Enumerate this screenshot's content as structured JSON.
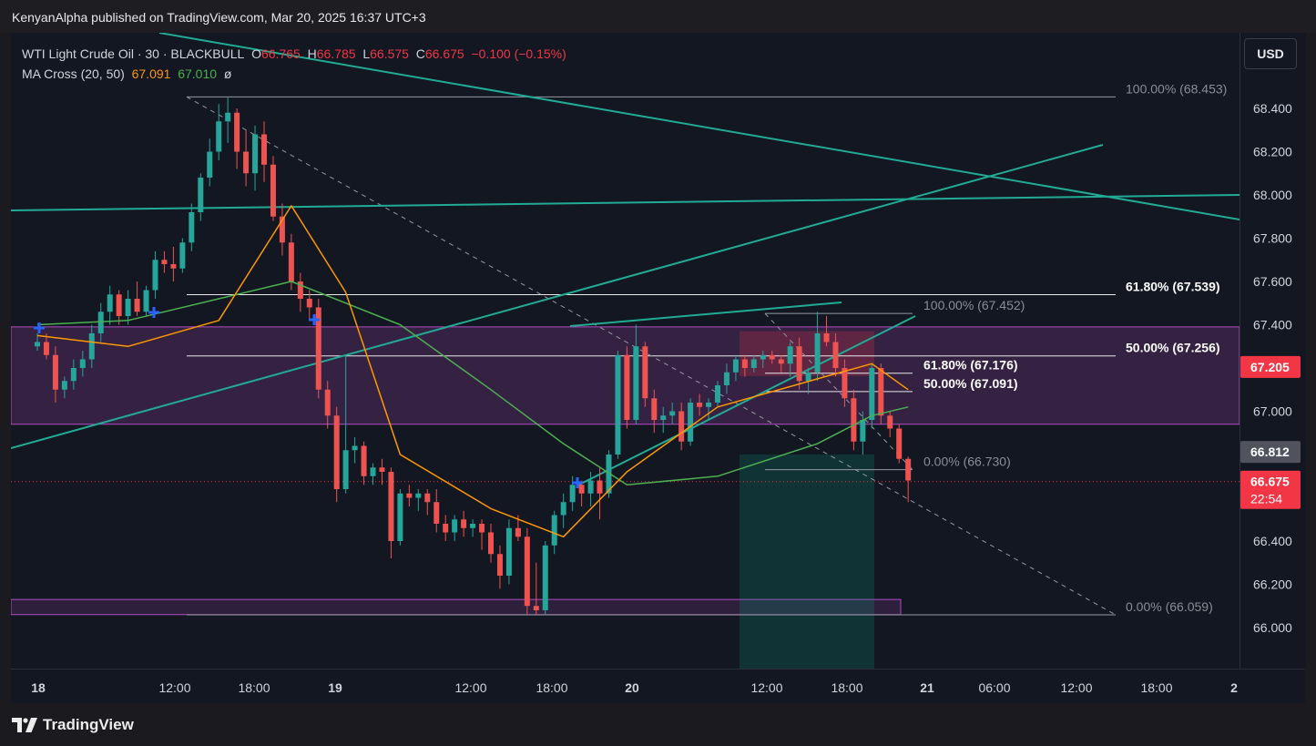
{
  "header": {
    "published_line": "KenyanAlpha published on TradingView.com, Mar 20, 2025 16:37 UTC+3"
  },
  "legend": {
    "symbol": "WTI Light Crude Oil · 30 · BLACKBULL",
    "o_label": "O",
    "o_value": "66.765",
    "h_label": "H",
    "h_value": "66.785",
    "l_label": "L",
    "l_value": "66.575",
    "c_label": "C",
    "c_value": "66.675",
    "change": "−0.100 (−0.15%)",
    "ma_name": "MA Cross (20, 50)",
    "ma_fast": "67.091",
    "ma_slow": "67.010",
    "ma_symbol": "ø"
  },
  "currency_button": "USD",
  "brand": "TradingView",
  "colors": {
    "up": "#26a69a",
    "down": "#ef5350",
    "ma_fast": "#ff9800",
    "ma_slow": "#4caf50",
    "trendline": "#22ab94",
    "zone": "#7e3b8a",
    "cross_marker": "#2962ff"
  },
  "chart_data": {
    "type": "candlestick",
    "y_axis": {
      "ticks": [
        "68.400",
        "68.200",
        "68.000",
        "67.800",
        "67.600",
        "67.400",
        "67.200",
        "67.000",
        "66.800",
        "66.600",
        "66.400",
        "66.200",
        "66.000"
      ],
      "range": [
        65.82,
        68.8
      ]
    },
    "x_axis": {
      "ticks": [
        "18",
        "12:00",
        "18:00",
        "19",
        "12:00",
        "18:00",
        "20",
        "12:00",
        "18:00",
        "21",
        "06:00",
        "12:00",
        "18:00",
        "2"
      ]
    },
    "price_labels": {
      "current_price": "67.205",
      "prev_close": "66.812",
      "last_price": "66.675",
      "countdown": "22:54"
    },
    "fib_levels": [
      {
        "label": "100.00% (68.453)",
        "price": 68.453
      },
      {
        "label": "61.80% (67.539)",
        "price": 67.539
      },
      {
        "label": "50.00% (67.256)",
        "price": 67.256
      },
      {
        "label": "0.00% (66.059)",
        "price": 66.059
      },
      {
        "label": "100.00% (67.452)",
        "price": 67.452
      },
      {
        "label": "61.80% (67.176)",
        "price": 67.176
      },
      {
        "label": "50.00% (67.091)",
        "price": 67.091
      },
      {
        "label": "0.00% (66.730)",
        "price": 66.73
      }
    ],
    "zones": [
      {
        "top": 67.39,
        "bottom": 66.94
      },
      {
        "top": 66.13,
        "bottom": 66.06
      }
    ],
    "position": {
      "entry": 67.205,
      "stop": 67.37,
      "target": 65.82,
      "entry_line": 66.8
    },
    "candles": [
      [
        67.3,
        67.36,
        67.28,
        67.32
      ],
      [
        67.32,
        67.36,
        67.24,
        67.26
      ],
      [
        67.26,
        67.3,
        67.04,
        67.1
      ],
      [
        67.1,
        67.16,
        67.06,
        67.14
      ],
      [
        67.14,
        67.24,
        67.1,
        67.2
      ],
      [
        67.2,
        67.28,
        67.16,
        67.24
      ],
      [
        67.24,
        67.4,
        67.2,
        67.36
      ],
      [
        67.36,
        67.5,
        67.32,
        67.46
      ],
      [
        67.46,
        67.58,
        67.4,
        67.54
      ],
      [
        67.54,
        67.56,
        67.4,
        67.44
      ],
      [
        67.44,
        67.56,
        67.4,
        67.52
      ],
      [
        67.52,
        67.6,
        67.44,
        67.46
      ],
      [
        67.46,
        67.58,
        67.44,
        67.56
      ],
      [
        67.56,
        67.74,
        67.52,
        67.7
      ],
      [
        67.7,
        67.74,
        67.64,
        67.68
      ],
      [
        67.68,
        67.76,
        67.6,
        67.66
      ],
      [
        67.66,
        67.8,
        67.64,
        67.78
      ],
      [
        67.78,
        67.96,
        67.74,
        67.92
      ],
      [
        67.92,
        68.1,
        67.88,
        68.08
      ],
      [
        68.08,
        68.26,
        68.04,
        68.2
      ],
      [
        68.2,
        68.42,
        68.16,
        68.34
      ],
      [
        68.34,
        68.45,
        68.24,
        68.38
      ],
      [
        68.38,
        68.4,
        68.12,
        68.2
      ],
      [
        68.2,
        68.3,
        68.04,
        68.1
      ],
      [
        68.1,
        68.32,
        68.02,
        68.28
      ],
      [
        68.28,
        68.34,
        68.06,
        68.14
      ],
      [
        68.14,
        68.18,
        67.88,
        67.9
      ],
      [
        67.9,
        67.96,
        67.72,
        67.78
      ],
      [
        67.78,
        67.82,
        67.56,
        67.6
      ],
      [
        67.6,
        67.64,
        67.46,
        67.52
      ],
      [
        67.52,
        67.56,
        67.42,
        67.48
      ],
      [
        67.48,
        67.52,
        67.06,
        67.1
      ],
      [
        67.1,
        67.14,
        66.92,
        66.98
      ],
      [
        66.98,
        67.02,
        66.58,
        66.64
      ],
      [
        66.64,
        67.26,
        66.62,
        66.82
      ],
      [
        66.82,
        66.88,
        66.76,
        66.84
      ],
      [
        66.84,
        66.86,
        66.66,
        66.7
      ],
      [
        66.7,
        66.76,
        66.66,
        66.74
      ],
      [
        66.74,
        66.78,
        66.66,
        66.72
      ],
      [
        66.72,
        66.74,
        66.32,
        66.4
      ],
      [
        66.4,
        66.64,
        66.38,
        66.62
      ],
      [
        66.62,
        66.66,
        66.56,
        66.6
      ],
      [
        66.6,
        66.64,
        66.54,
        66.62
      ],
      [
        66.62,
        66.64,
        66.52,
        66.58
      ],
      [
        66.58,
        66.64,
        66.44,
        66.48
      ],
      [
        66.48,
        66.52,
        66.4,
        66.44
      ],
      [
        66.44,
        66.52,
        66.4,
        66.5
      ],
      [
        66.5,
        66.54,
        66.42,
        66.46
      ],
      [
        66.46,
        66.5,
        66.42,
        66.48
      ],
      [
        66.48,
        66.5,
        66.36,
        66.44
      ],
      [
        66.44,
        66.48,
        66.3,
        66.34
      ],
      [
        66.34,
        66.38,
        66.18,
        66.24
      ],
      [
        66.24,
        66.5,
        66.2,
        66.46
      ],
      [
        66.46,
        66.52,
        66.4,
        66.42
      ],
      [
        66.42,
        66.46,
        66.06,
        66.1
      ],
      [
        66.1,
        66.3,
        66.06,
        66.08
      ],
      [
        66.08,
        66.4,
        66.06,
        66.38
      ],
      [
        66.38,
        66.54,
        66.34,
        66.52
      ],
      [
        66.52,
        66.62,
        66.46,
        66.58
      ],
      [
        66.58,
        66.7,
        66.54,
        66.66
      ],
      [
        66.66,
        66.68,
        66.56,
        66.62
      ],
      [
        66.62,
        66.72,
        66.56,
        66.68
      ],
      [
        66.68,
        66.74,
        66.5,
        66.62
      ],
      [
        66.62,
        66.82,
        66.6,
        66.8
      ],
      [
        66.8,
        67.28,
        66.78,
        67.26
      ],
      [
        67.26,
        67.3,
        66.92,
        66.96
      ],
      [
        66.96,
        67.4,
        66.94,
        67.3
      ],
      [
        67.3,
        67.32,
        67.02,
        67.06
      ],
      [
        67.06,
        67.1,
        66.9,
        66.96
      ],
      [
        66.96,
        67.02,
        66.9,
        66.98
      ],
      [
        66.98,
        67.04,
        66.94,
        67.0
      ],
      [
        67.0,
        67.04,
        66.82,
        66.86
      ],
      [
        66.86,
        67.06,
        66.84,
        67.04
      ],
      [
        67.04,
        67.08,
        66.98,
        67.02
      ],
      [
        67.02,
        67.06,
        66.96,
        67.04
      ],
      [
        67.04,
        67.14,
        67.02,
        67.12
      ],
      [
        67.12,
        67.22,
        67.08,
        67.18
      ],
      [
        67.18,
        67.26,
        67.14,
        67.24
      ],
      [
        67.24,
        67.26,
        67.16,
        67.2
      ],
      [
        67.2,
        67.26,
        67.18,
        67.24
      ],
      [
        67.24,
        67.28,
        67.2,
        67.26
      ],
      [
        67.26,
        67.28,
        67.22,
        67.24
      ],
      [
        67.24,
        67.26,
        67.18,
        67.22
      ],
      [
        67.22,
        67.32,
        67.16,
        67.3
      ],
      [
        67.3,
        67.34,
        67.1,
        67.14
      ],
      [
        67.14,
        67.2,
        67.08,
        67.18
      ],
      [
        67.18,
        67.46,
        67.14,
        67.36
      ],
      [
        67.36,
        67.44,
        67.3,
        67.32
      ],
      [
        67.32,
        67.36,
        67.16,
        67.2
      ],
      [
        67.2,
        67.24,
        67.02,
        67.06
      ],
      [
        67.06,
        67.1,
        66.82,
        66.86
      ],
      [
        66.86,
        67.0,
        66.8,
        66.96
      ],
      [
        66.96,
        67.22,
        66.92,
        67.2
      ],
      [
        67.2,
        67.22,
        66.94,
        66.98
      ],
      [
        66.98,
        67.0,
        66.88,
        66.92
      ],
      [
        66.92,
        66.94,
        66.76,
        66.78
      ],
      [
        66.78,
        66.79,
        66.58,
        66.68
      ]
    ],
    "ma_fast_points": [
      [
        0,
        67.35
      ],
      [
        10,
        67.3
      ],
      [
        20,
        67.42
      ],
      [
        28,
        67.95
      ],
      [
        34,
        67.55
      ],
      [
        40,
        66.8
      ],
      [
        50,
        66.55
      ],
      [
        58,
        66.42
      ],
      [
        65,
        66.72
      ],
      [
        75,
        67.02
      ],
      [
        86,
        67.15
      ],
      [
        92,
        67.22
      ],
      [
        96,
        67.1
      ]
    ],
    "ma_slow_points": [
      [
        0,
        67.4
      ],
      [
        10,
        67.42
      ],
      [
        20,
        67.52
      ],
      [
        28,
        67.6
      ],
      [
        40,
        67.4
      ],
      [
        50,
        67.1
      ],
      [
        58,
        66.85
      ],
      [
        65,
        66.66
      ],
      [
        75,
        66.7
      ],
      [
        86,
        66.85
      ],
      [
        92,
        66.98
      ],
      [
        96,
        67.02
      ]
    ]
  }
}
